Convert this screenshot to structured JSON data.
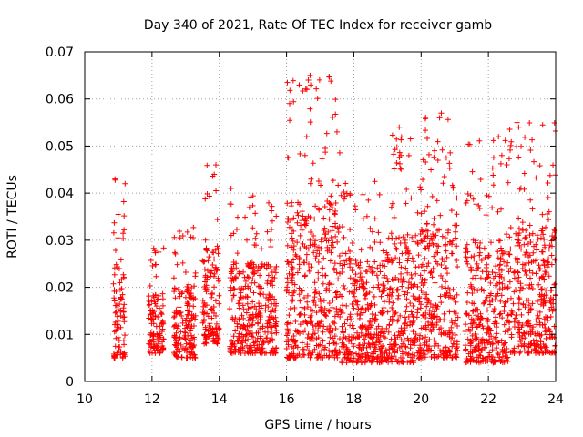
{
  "chart_data": {
    "type": "scatter",
    "title": "Day 340 of 2021, Rate Of TEC Index for receiver gamb",
    "xlabel": "GPS time / hours",
    "ylabel": "ROTI / TECUs",
    "xlim": [
      10,
      24
    ],
    "ylim": [
      0,
      0.07
    ],
    "xticks": [
      "10",
      "12",
      "14",
      "16",
      "18",
      "20",
      "22",
      "24"
    ],
    "yticks": [
      "0",
      "0.01",
      "0.02",
      "0.03",
      "0.04",
      "0.05",
      "0.06",
      "0.07"
    ],
    "grid": true,
    "marker": "plus",
    "color": "#ff0000",
    "series": [
      {
        "name": "ROTI",
        "clusters": [
          {
            "x": [
              10.85,
              11.2
            ],
            "y": [
              0.005,
              0.043
            ]
          },
          {
            "x": [
              11.9,
              12.35
            ],
            "y": [
              0.006,
              0.029
            ]
          },
          {
            "x": [
              12.65,
              13.3
            ],
            "y": [
              0.005,
              0.033
            ]
          },
          {
            "x": [
              13.5,
              14.0
            ],
            "y": [
              0.008,
              0.046
            ]
          },
          {
            "x": [
              14.3,
              15.7
            ],
            "y": [
              0.006,
              0.041
            ]
          },
          {
            "x": [
              16.0,
              17.6
            ],
            "y": [
              0.005,
              0.065
            ]
          },
          {
            "x": [
              17.6,
              19.0
            ],
            "y": [
              0.004,
              0.044
            ]
          },
          {
            "x": [
              19.0,
              20.0
            ],
            "y": [
              0.004,
              0.054
            ]
          },
          {
            "x": [
              20.0,
              21.1
            ],
            "y": [
              0.005,
              0.057
            ]
          },
          {
            "x": [
              21.3,
              22.6
            ],
            "y": [
              0.004,
              0.052
            ]
          },
          {
            "x": [
              22.6,
              24.0
            ],
            "y": [
              0.006,
              0.055
            ]
          }
        ],
        "points": [
          [
            16.65,
            0.064
          ],
          [
            16.7,
            0.065
          ],
          [
            20.55,
            0.056
          ],
          [
            20.6,
            0.057
          ],
          [
            22.85,
            0.055
          ],
          [
            22.9,
            0.054
          ],
          [
            19.35,
            0.054
          ],
          [
            22.3,
            0.052
          ],
          [
            16.6,
            0.052
          ],
          [
            17.5,
            0.053
          ],
          [
            13.9,
            0.046
          ],
          [
            13.85,
            0.044
          ],
          [
            14.35,
            0.041
          ],
          [
            11.2,
            0.042
          ],
          [
            10.9,
            0.043
          ],
          [
            20.4,
            0.049
          ],
          [
            19.4,
            0.048
          ],
          [
            22.4,
            0.048
          ],
          [
            20.5,
            0.047
          ],
          [
            16.55,
            0.048
          ]
        ]
      }
    ]
  }
}
